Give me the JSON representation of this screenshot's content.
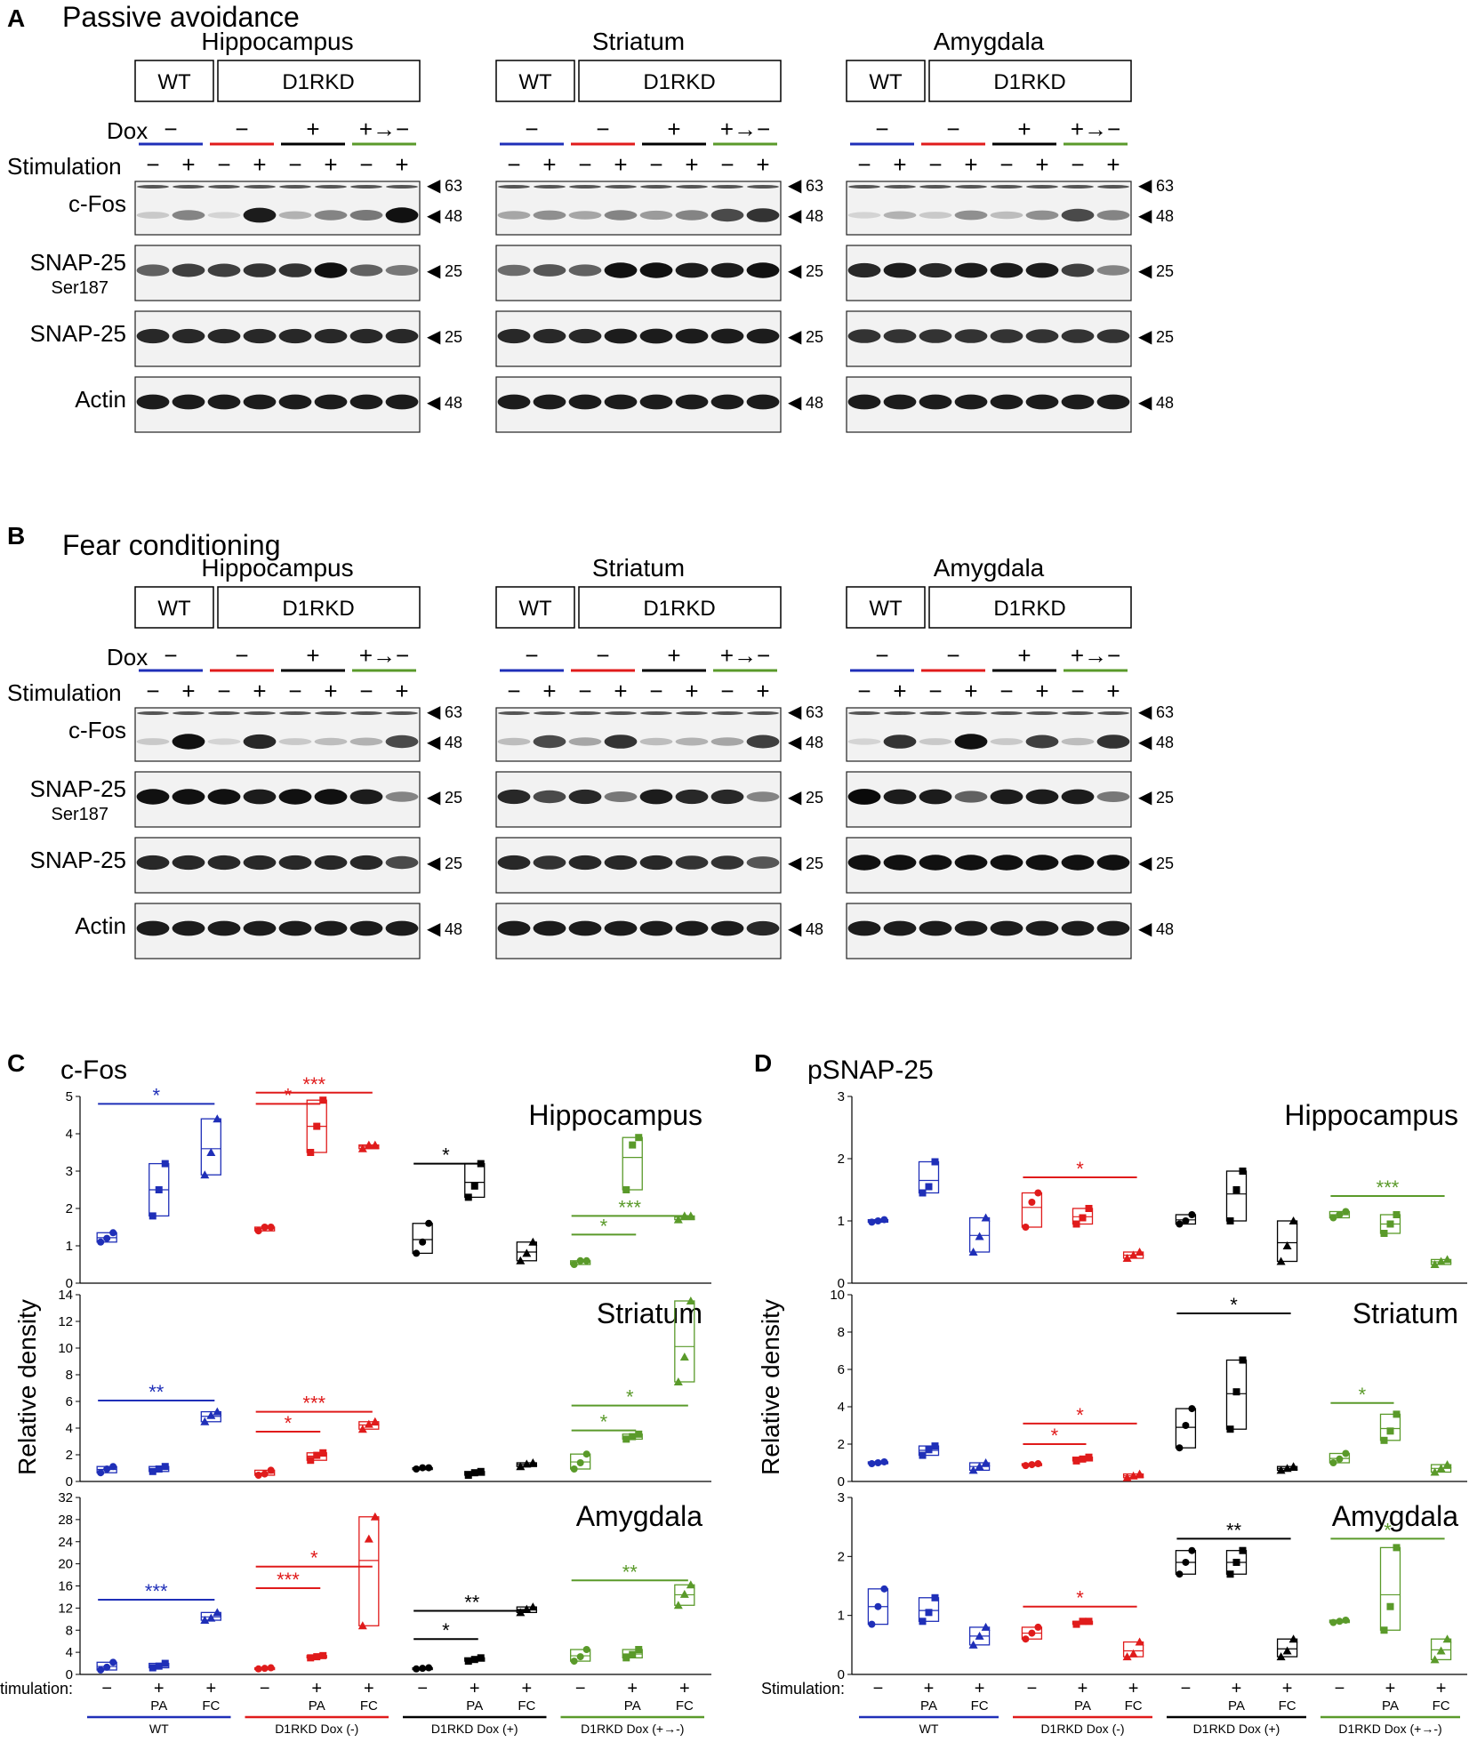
{
  "panels_ab": {
    "panel_a": {
      "letter": "A",
      "title": "Passive avoidance"
    },
    "panel_b": {
      "letter": "B",
      "title": "Fear conditioning"
    },
    "regions": [
      "Hippocampus",
      "Striatum",
      "Amygdala"
    ],
    "group_wt": "WT",
    "group_kd": "D1RKD",
    "dox_label": "Dox",
    "stim_label": "Stimulation",
    "dox_values": [
      "−",
      "−",
      "+",
      "+→−"
    ],
    "stim_values": [
      "−",
      "+",
      "−",
      "+",
      "−",
      "+",
      "−",
      "+"
    ],
    "blots": [
      {
        "name": "c-Fos",
        "sub": "",
        "markers": [
          "63",
          "48"
        ]
      },
      {
        "name": "SNAP-25",
        "sub": "Ser187",
        "markers": [
          "25"
        ]
      },
      {
        "name": "SNAP-25",
        "sub": "",
        "markers": [
          "25"
        ]
      },
      {
        "name": "Actin",
        "sub": "",
        "markers": [
          "48"
        ]
      }
    ],
    "group_colors": [
      "#1f2fb8",
      "#e01b1b",
      "#000000",
      "#5a9a2a"
    ],
    "band_intensity": {
      "A": {
        "Hippocampus": {
          "cfos": [
            0.15,
            0.45,
            0.1,
            0.9,
            0.25,
            0.45,
            0.5,
            0.95
          ],
          "psnap": [
            0.6,
            0.75,
            0.75,
            0.8,
            0.8,
            0.95,
            0.6,
            0.5
          ],
          "snap": [
            0.85,
            0.85,
            0.85,
            0.85,
            0.85,
            0.85,
            0.85,
            0.85
          ],
          "actin": [
            0.9,
            0.9,
            0.9,
            0.9,
            0.9,
            0.9,
            0.9,
            0.9
          ]
        },
        "Striatum": {
          "cfos": [
            0.3,
            0.4,
            0.3,
            0.45,
            0.35,
            0.45,
            0.7,
            0.8
          ],
          "psnap": [
            0.55,
            0.65,
            0.6,
            0.95,
            0.95,
            0.9,
            0.9,
            0.95
          ],
          "snap": [
            0.85,
            0.85,
            0.85,
            0.9,
            0.9,
            0.9,
            0.9,
            0.9
          ],
          "actin": [
            0.9,
            0.9,
            0.9,
            0.9,
            0.9,
            0.9,
            0.9,
            0.9
          ]
        },
        "Amygdala": {
          "cfos": [
            0.1,
            0.25,
            0.15,
            0.4,
            0.2,
            0.4,
            0.7,
            0.45
          ],
          "psnap": [
            0.85,
            0.9,
            0.85,
            0.9,
            0.9,
            0.9,
            0.75,
            0.45
          ],
          "snap": [
            0.8,
            0.8,
            0.8,
            0.8,
            0.8,
            0.8,
            0.8,
            0.8
          ],
          "actin": [
            0.9,
            0.9,
            0.9,
            0.9,
            0.9,
            0.9,
            0.9,
            0.9
          ]
        }
      },
      "B": {
        "Hippocampus": {
          "cfos": [
            0.15,
            0.95,
            0.1,
            0.85,
            0.15,
            0.2,
            0.25,
            0.7
          ],
          "psnap": [
            0.95,
            0.95,
            0.95,
            0.9,
            0.95,
            0.95,
            0.9,
            0.45
          ],
          "snap": [
            0.85,
            0.85,
            0.85,
            0.85,
            0.85,
            0.85,
            0.85,
            0.7
          ],
          "actin": [
            0.9,
            0.9,
            0.9,
            0.9,
            0.9,
            0.9,
            0.9,
            0.9
          ]
        },
        "Striatum": {
          "cfos": [
            0.2,
            0.7,
            0.3,
            0.8,
            0.2,
            0.25,
            0.3,
            0.75
          ],
          "psnap": [
            0.85,
            0.7,
            0.85,
            0.5,
            0.9,
            0.85,
            0.85,
            0.45
          ],
          "snap": [
            0.85,
            0.8,
            0.85,
            0.85,
            0.85,
            0.8,
            0.8,
            0.65
          ],
          "actin": [
            0.9,
            0.9,
            0.9,
            0.9,
            0.9,
            0.9,
            0.9,
            0.85
          ]
        },
        "Amygdala": {
          "cfos": [
            0.1,
            0.8,
            0.15,
            0.95,
            0.15,
            0.75,
            0.2,
            0.8
          ],
          "psnap": [
            0.98,
            0.9,
            0.9,
            0.6,
            0.9,
            0.9,
            0.9,
            0.5
          ],
          "snap": [
            0.95,
            0.95,
            0.95,
            0.95,
            0.95,
            0.95,
            0.95,
            0.95
          ],
          "actin": [
            0.9,
            0.9,
            0.9,
            0.9,
            0.9,
            0.9,
            0.9,
            0.9
          ]
        }
      }
    }
  },
  "chart_data": [
    {
      "panel": "C",
      "title": "c-Fos",
      "subtitle": "Hippocampus",
      "ylabel": "Relative density",
      "type": "scatter",
      "ylim": [
        0,
        5
      ],
      "yticks": [
        "0",
        "1",
        "2",
        "3",
        "4",
        "5"
      ],
      "groups": [
        {
          "points": [
            [
              1.1,
              1.2,
              1.35
            ],
            [
              1.8,
              2.5,
              3.2
            ],
            [
              2.9,
              3.5,
              4.4
            ]
          ]
        },
        {
          "points": [
            [
              1.4,
              1.5,
              1.5
            ],
            [
              3.5,
              4.2,
              4.9
            ],
            [
              3.6,
              3.7,
              3.7
            ]
          ]
        },
        {
          "points": [
            [
              0.8,
              1.1,
              1.6
            ],
            [
              2.3,
              2.6,
              3.2
            ],
            [
              0.6,
              0.8,
              1.1
            ]
          ]
        },
        {
          "points": [
            [
              0.5,
              0.6,
              0.6
            ],
            [
              2.5,
              3.7,
              3.9
            ],
            [
              1.7,
              1.8,
              1.8
            ]
          ]
        }
      ],
      "significance": [
        {
          "group": 0,
          "from": 0,
          "to": 2,
          "label": "*",
          "y": 4.8
        },
        {
          "group": 1,
          "from": 0,
          "to": 2,
          "label": "***",
          "y": 5.2
        },
        {
          "group": 1,
          "from": 0,
          "to": 1,
          "label": "*",
          "y": 4.8
        },
        {
          "group": 2,
          "from": 0,
          "to": 1,
          "label": "*",
          "y": 3.2
        },
        {
          "group": 3,
          "from": 0,
          "to": 2,
          "label": "***",
          "y": 1.8
        },
        {
          "group": 3,
          "from": 0,
          "to": 1,
          "label": "*",
          "y": 1.3
        }
      ]
    },
    {
      "panel": "C",
      "subtitle": "Striatum",
      "type": "scatter",
      "ylim": [
        0,
        15
      ],
      "yticks": [
        "0",
        "2",
        "4",
        "6",
        "8",
        "10",
        "12",
        "14"
      ],
      "groups": [
        {
          "points": [
            [
              0.7,
              1.0,
              1.2
            ],
            [
              0.8,
              1.0,
              1.2
            ],
            [
              4.8,
              5.3,
              5.6
            ]
          ]
        },
        {
          "points": [
            [
              0.5,
              0.6,
              0.9
            ],
            [
              1.7,
              2.1,
              2.3
            ],
            [
              4.2,
              4.6,
              4.8
            ]
          ]
        },
        {
          "points": [
            [
              1.0,
              1.1,
              1.1
            ],
            [
              0.5,
              0.7,
              0.8
            ],
            [
              1.2,
              1.4,
              1.5
            ]
          ]
        },
        {
          "points": [
            [
              1.0,
              1.5,
              2.2
            ],
            [
              3.4,
              3.6,
              3.8
            ],
            [
              8.0,
              10.0,
              14.5
            ]
          ]
        }
      ],
      "significance": [
        {
          "group": 0,
          "from": 0,
          "to": 2,
          "label": "**",
          "y": 6.5
        },
        {
          "group": 1,
          "from": 0,
          "to": 2,
          "label": "***",
          "y": 5.6
        },
        {
          "group": 1,
          "from": 0,
          "to": 1,
          "label": "*",
          "y": 4.0
        },
        {
          "group": 3,
          "from": 0,
          "to": 2,
          "label": "*",
          "y": 6.1
        },
        {
          "group": 3,
          "from": 0,
          "to": 1,
          "label": "*",
          "y": 4.1
        }
      ]
    },
    {
      "panel": "C",
      "subtitle": "Amygdala",
      "type": "scatter",
      "ylim": [
        0,
        32
      ],
      "yticks": [
        "0",
        "4",
        "8",
        "12",
        "16",
        "20",
        "24",
        "28",
        "32"
      ],
      "groups": [
        {
          "points": [
            [
              0.8,
              1.3,
              2.2
            ],
            [
              1.2,
              1.5,
              2.0
            ],
            [
              9.8,
              10.2,
              11.2
            ]
          ]
        },
        {
          "points": [
            [
              1.0,
              1.1,
              1.2
            ],
            [
              3.0,
              3.2,
              3.4
            ],
            [
              8.8,
              24.5,
              28.5
            ]
          ]
        },
        {
          "points": [
            [
              1.0,
              1.1,
              1.2
            ],
            [
              2.4,
              2.7,
              3.0
            ],
            [
              11.2,
              11.8,
              12.2
            ]
          ]
        },
        {
          "points": [
            [
              2.4,
              3.2,
              4.5
            ],
            [
              3.0,
              3.6,
              4.5
            ],
            [
              12.5,
              14.5,
              16.2
            ]
          ]
        }
      ],
      "significance": [
        {
          "group": 0,
          "from": 0,
          "to": 2,
          "label": "***",
          "y": 13.5
        },
        {
          "group": 1,
          "from": 0,
          "to": 2,
          "label": "*",
          "y": 19.5
        },
        {
          "group": 1,
          "from": 0,
          "to": 1,
          "label": "***",
          "y": 15.6
        },
        {
          "group": 2,
          "from": 0,
          "to": 2,
          "label": "**",
          "y": 11.5
        },
        {
          "group": 2,
          "from": 0,
          "to": 1,
          "label": "*",
          "y": 6.4
        },
        {
          "group": 3,
          "from": 0,
          "to": 2,
          "label": "**",
          "y": 17.0
        }
      ]
    },
    {
      "panel": "D",
      "title": "pSNAP-25",
      "subtitle": "Hippocampus",
      "ylabel": "Relative density",
      "type": "scatter",
      "ylim": [
        0,
        3
      ],
      "yticks": [
        "0",
        "1",
        "2",
        "3"
      ],
      "groups": [
        {
          "points": [
            [
              0.98,
              1.0,
              1.02
            ],
            [
              1.45,
              1.55,
              1.95
            ],
            [
              0.5,
              0.75,
              1.05
            ]
          ]
        },
        {
          "points": [
            [
              0.9,
              1.3,
              1.45
            ],
            [
              0.95,
              1.05,
              1.2
            ],
            [
              0.4,
              0.45,
              0.5
            ]
          ]
        },
        {
          "points": [
            [
              0.95,
              1.0,
              1.1
            ],
            [
              1.0,
              1.5,
              1.8
            ],
            [
              0.35,
              0.6,
              1.0
            ]
          ]
        },
        {
          "points": [
            [
              1.05,
              1.1,
              1.15
            ],
            [
              0.8,
              0.95,
              1.1
            ],
            [
              0.3,
              0.35,
              0.38
            ]
          ]
        }
      ],
      "significance": [
        {
          "group": 1,
          "from": 0,
          "to": 2,
          "label": "*",
          "y": 1.7
        },
        {
          "group": 3,
          "from": 0,
          "to": 2,
          "label": "***",
          "y": 1.4
        }
      ]
    },
    {
      "panel": "D",
      "subtitle": "Striatum",
      "type": "scatter",
      "ylim": [
        0,
        10
      ],
      "yticks": [
        "0",
        "2",
        "4",
        "6",
        "8",
        "10"
      ],
      "groups": [
        {
          "points": [
            [
              0.95,
              1.0,
              1.05
            ],
            [
              1.4,
              1.7,
              1.9
            ],
            [
              0.6,
              0.8,
              1.0
            ]
          ]
        },
        {
          "points": [
            [
              0.85,
              0.9,
              0.95
            ],
            [
              1.1,
              1.2,
              1.3
            ],
            [
              0.2,
              0.3,
              0.4
            ]
          ]
        },
        {
          "points": [
            [
              1.8,
              3.0,
              3.9
            ],
            [
              2.8,
              4.8,
              6.5
            ],
            [
              0.6,
              0.7,
              0.8
            ]
          ]
        },
        {
          "points": [
            [
              1.0,
              1.2,
              1.5
            ],
            [
              2.2,
              2.7,
              3.6
            ],
            [
              0.5,
              0.7,
              0.9
            ]
          ]
        }
      ],
      "significance": [
        {
          "group": 2,
          "from": 0,
          "to": 2,
          "label": "*",
          "y": 9.0
        },
        {
          "group": 1,
          "from": 0,
          "to": 2,
          "label": "*",
          "y": 3.1
        },
        {
          "group": 1,
          "from": 0,
          "to": 1,
          "label": "*",
          "y": 2.0
        },
        {
          "group": 3,
          "from": 0,
          "to": 1,
          "label": "*",
          "y": 4.2
        }
      ]
    },
    {
      "panel": "D",
      "subtitle": "Amygdala",
      "type": "scatter",
      "ylim": [
        0,
        3
      ],
      "yticks": [
        "0",
        "1",
        "2",
        "3"
      ],
      "groups": [
        {
          "points": [
            [
              0.85,
              1.15,
              1.45
            ],
            [
              0.9,
              1.05,
              1.3
            ],
            [
              0.5,
              0.65,
              0.8
            ]
          ]
        },
        {
          "points": [
            [
              0.6,
              0.7,
              0.8
            ],
            [
              0.85,
              0.9,
              0.9
            ],
            [
              0.3,
              0.35,
              0.55
            ]
          ]
        },
        {
          "points": [
            [
              1.7,
              1.9,
              2.1
            ],
            [
              1.7,
              1.9,
              2.1
            ],
            [
              0.3,
              0.4,
              0.6
            ]
          ]
        },
        {
          "points": [
            [
              0.88,
              0.9,
              0.92
            ],
            [
              0.75,
              1.15,
              2.15
            ],
            [
              0.25,
              0.4,
              0.6
            ]
          ]
        }
      ],
      "significance": [
        {
          "group": 1,
          "from": 0,
          "to": 2,
          "label": "*",
          "y": 1.15
        },
        {
          "group": 2,
          "from": 0,
          "to": 2,
          "label": "**",
          "y": 2.3
        },
        {
          "group": 3,
          "from": 0,
          "to": 2,
          "label": "*",
          "y": 2.3
        }
      ]
    }
  ],
  "panels_cd": {
    "panel_c": {
      "letter": "C",
      "title": "c-Fos"
    },
    "panel_d": {
      "letter": "D",
      "title": "pSNAP-25"
    },
    "ylabel": "Relative density",
    "stim_label": "Stimulation:",
    "stim_ticks": [
      "−",
      "+",
      "+"
    ],
    "stim_sub": [
      "",
      "PA",
      "FC"
    ],
    "group_labels": [
      "WT",
      "D1RKD Dox (-)",
      "D1RKD Dox (+)",
      "D1RKD Dox (+→-)"
    ],
    "marker_shapes": [
      "circle",
      "square",
      "triangle"
    ]
  }
}
